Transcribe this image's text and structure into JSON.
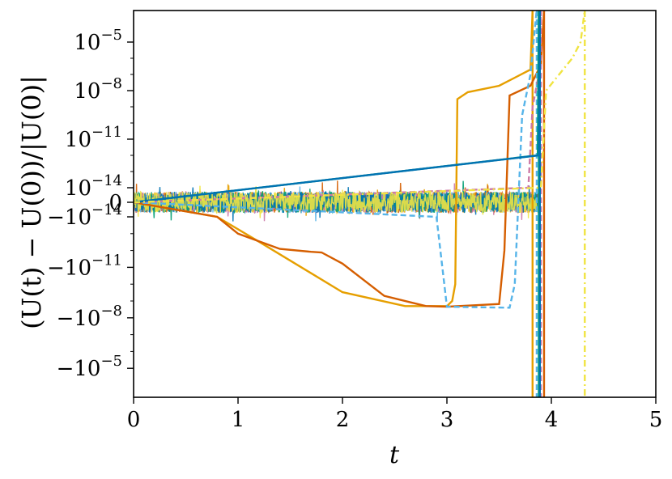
{
  "chart_data": {
    "type": "line",
    "xlabel": "t",
    "ylabel": "(U(t) − U(0))/|U(0)|",
    "xlim": [
      0,
      5
    ],
    "x_ticks": [
      "0",
      "1",
      "2",
      "3",
      "4",
      "5"
    ],
    "y_scale": "symlog",
    "y_ticks": [
      "10^-5",
      "10^-8",
      "10^-11",
      "10^-14",
      "0",
      "-10^-14",
      "-10^-11",
      "-10^-8",
      "-10^-5"
    ],
    "y_ticks_display": [
      {
        "base": "10",
        "exp": "−5"
      },
      {
        "base": "10",
        "exp": "−8"
      },
      {
        "base": "10",
        "exp": "−11"
      },
      {
        "base": "10",
        "exp": "−14"
      },
      {
        "base": "0",
        "exp": ""
      },
      {
        "base": "−10",
        "exp": "−14"
      },
      {
        "base": "−10",
        "exp": "−11"
      },
      {
        "base": "−10",
        "exp": "−8"
      },
      {
        "base": "−10",
        "exp": "−5"
      }
    ],
    "grid": false,
    "series": [
      {
        "color": "#E69F00",
        "style": "solid",
        "blowup_t": 3.82,
        "points": [
          [
            0,
            0
          ],
          [
            0.8,
            -1e-14
          ],
          [
            1.2,
            -3e-13
          ],
          [
            2.0,
            -3e-10
          ],
          [
            2.6,
            -2e-09
          ],
          [
            3.0,
            -2e-09
          ],
          [
            3.05,
            -1e-09
          ],
          [
            3.08,
            -1e-10
          ],
          [
            3.1,
            3e-09
          ],
          [
            3.2,
            8e-09
          ],
          [
            3.5,
            2e-08
          ],
          [
            3.8,
            2e-07
          ],
          [
            3.82,
            0.001
          ]
        ]
      },
      {
        "color": "#D55E00",
        "style": "solid",
        "blowup_t": 3.93,
        "points": [
          [
            0,
            0
          ],
          [
            0.8,
            -1e-14
          ],
          [
            1.0,
            -1e-13
          ],
          [
            1.4,
            -8e-13
          ],
          [
            1.7,
            -1.2e-12
          ],
          [
            1.8,
            -1.3e-12
          ],
          [
            2.0,
            -6e-12
          ],
          [
            2.4,
            -5e-10
          ],
          [
            2.8,
            -2e-09
          ],
          [
            3.0,
            -2.2e-09
          ],
          [
            3.5,
            -1.5e-09
          ],
          [
            3.55,
            -1e-12
          ],
          [
            3.6,
            5e-09
          ],
          [
            3.8,
            2e-08
          ],
          [
            3.9,
            4e-07
          ],
          [
            3.93,
            0.001
          ]
        ]
      },
      {
        "color": "#56B4E9",
        "style": "dashed",
        "blowup_t": 3.86,
        "points": [
          [
            0,
            0
          ],
          [
            2.9,
            -1e-14
          ],
          [
            3.0,
            -2.2e-09
          ],
          [
            3.6,
            -2.5e-09
          ],
          [
            3.65,
            -1e-10
          ],
          [
            3.72,
            3e-10
          ],
          [
            3.8,
            1e-07
          ],
          [
            3.86,
            0.001
          ]
        ]
      },
      {
        "color": "#CC79A7",
        "style": "dashed",
        "blowup_t": 3.9,
        "points": [
          [
            0,
            0
          ],
          [
            3.78,
            1e-14
          ],
          [
            3.82,
            1e-09
          ],
          [
            3.88,
            1e-07
          ],
          [
            3.9,
            0.001
          ]
        ]
      },
      {
        "color": "#009E73",
        "style": "solid",
        "blowup_t": 3.88,
        "points": [
          [
            0,
            0
          ],
          [
            3.87,
            1e-12
          ],
          [
            3.88,
            0.001
          ]
        ]
      },
      {
        "color": "#0072B2",
        "style": "solid",
        "blowup_t": 3.89,
        "points": [
          [
            0,
            0
          ],
          [
            3.88,
            1e-12
          ],
          [
            3.89,
            0.001
          ]
        ]
      },
      {
        "color": "#F0E442",
        "style": "dashdot",
        "blowup_t": 4.32,
        "points": [
          [
            0,
            0
          ],
          [
            3.9,
            1e-14
          ],
          [
            3.95,
            1e-08
          ],
          [
            4.2,
            1e-06
          ],
          [
            4.28,
            1e-05
          ],
          [
            4.32,
            0.001
          ]
        ]
      }
    ]
  }
}
